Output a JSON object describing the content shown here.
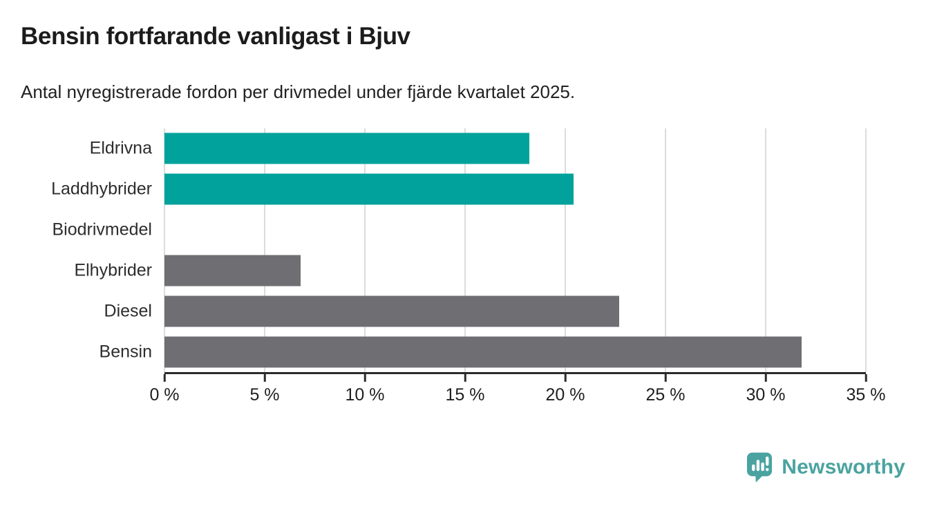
{
  "header": {
    "title": "Bensin fortfarande vanligast i Bjuv",
    "subtitle": "Antal nyregistrerade fordon per drivmedel under fjärde kvartalet 2025."
  },
  "chart_data": {
    "type": "bar",
    "orientation": "horizontal",
    "title": "Bensin fortfarande vanligast i Bjuv",
    "subtitle": "Antal nyregistrerade fordon per drivmedel under fjärde kvartalet 2025.",
    "categories": [
      "Eldrivna",
      "Laddhybrider",
      "Biodrivmedel",
      "Elhybrider",
      "Diesel",
      "Bensin"
    ],
    "values": [
      18.2,
      20.4,
      0,
      6.8,
      22.7,
      31.8
    ],
    "unit": "%",
    "bar_colors": [
      "#00a29b",
      "#00a29b",
      "#6e6e73",
      "#6e6e73",
      "#6e6e73",
      "#6e6e73"
    ],
    "xlim": [
      0,
      35
    ],
    "x_tick_step": 5,
    "x_tick_labels": [
      "0 %",
      "5 %",
      "10 %",
      "15 %",
      "20 %",
      "25 %",
      "30 %",
      "35 %"
    ],
    "grid": "vertical-only",
    "legend": "none"
  },
  "branding": {
    "logo_text": "Newsworthy",
    "logo_icon": "newsworthy-bar-chart-bubble-icon",
    "logo_color": "#4aa3a0"
  },
  "colors": {
    "highlight_bar": "#00a29b",
    "default_bar": "#6e6e73",
    "axis": "#2b2b2b",
    "gridline": "#dcdcdc",
    "title_text": "#1c1c1c",
    "background": "#ffffff"
  }
}
